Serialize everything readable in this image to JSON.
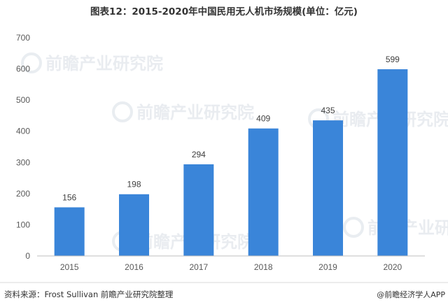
{
  "chart_data": {
    "type": "bar",
    "title": "图表12：2015-2020年中国民用无人机市场规模(单位：亿元)",
    "categories": [
      "2015",
      "2016",
      "2017",
      "2018",
      "2019",
      "2020"
    ],
    "values": [
      156,
      198,
      294,
      409,
      435,
      599
    ],
    "data_labels": [
      "156",
      "198",
      "294",
      "409",
      "435",
      "599"
    ],
    "ylim": [
      0,
      700
    ],
    "yticks": [
      0,
      100,
      200,
      300,
      400,
      500,
      600,
      700
    ],
    "ytick_labels": [
      "0",
      "100",
      "200",
      "300",
      "400",
      "500",
      "600",
      "700"
    ],
    "grid": false,
    "bar_color": "#3a85d9",
    "xlabel": "",
    "ylabel": ""
  },
  "footer": {
    "source": "资料来源：Frost Sullivan 前瞻产业研究院整理",
    "brand": "@前瞻经济学人APP"
  },
  "watermark": {
    "text": "前瞻产业研究院"
  }
}
